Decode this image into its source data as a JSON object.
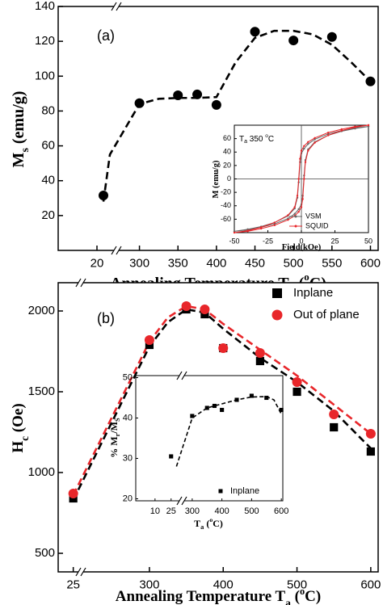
{
  "chart_data": [
    {
      "type": "scatter",
      "panel_label": "(a)",
      "xlabel": [
        {
          "text": "Annealing Temperature T"
        },
        {
          "text": "a",
          "sub": true
        },
        {
          "text": " ("
        },
        {
          "text": "o",
          "sup": true
        },
        {
          "text": "C)"
        }
      ],
      "ylabel": [
        {
          "text": "M"
        },
        {
          "text": "s",
          "sub": true
        },
        {
          "text": " (emu/g)"
        }
      ],
      "xlim": [
        [
          -10,
          35
        ],
        [
          270,
          610
        ]
      ],
      "xticks": [
        20,
        300,
        350,
        400,
        450,
        500,
        550,
        600
      ],
      "ylim": [
        0,
        140
      ],
      "yticks": [
        20,
        40,
        60,
        80,
        100,
        120,
        140
      ],
      "series": [
        {
          "color": "#000000",
          "line": "dashed",
          "marker": "none",
          "x": [
            25,
            30,
            300,
            325,
            350,
            375,
            400,
            425,
            450,
            475,
            500,
            525,
            550,
            575,
            600
          ],
          "values": [
            28,
            55,
            84,
            87,
            87.5,
            87.5,
            88,
            108,
            122,
            126,
            126,
            124,
            118,
            108,
            97
          ]
        },
        {
          "color": "#000000",
          "line": "none",
          "marker": "circle",
          "x": [
            25,
            300,
            350,
            375,
            400,
            450,
            500,
            550,
            600
          ],
          "values": [
            31.5,
            84.5,
            89,
            89.5,
            83.5,
            125.5,
            120.5,
            122.5,
            97
          ]
        }
      ]
    },
    {
      "type": "scatter",
      "inset": true,
      "annotation": [
        {
          "text": "T"
        },
        {
          "text": "a",
          "sub": true
        },
        {
          "text": " 350 "
        },
        {
          "text": "o",
          "sup": true
        },
        {
          "text": "C"
        }
      ],
      "xlabel": [
        {
          "text": "Field(kOe)"
        }
      ],
      "ylabel": [
        {
          "text": "M (emu/g)"
        }
      ],
      "xlim": [
        -50,
        50
      ],
      "xticks": [
        -50,
        -25,
        0,
        25,
        50
      ],
      "ylim": [
        -80,
        80
      ],
      "yticks": [
        -60,
        -40,
        -20,
        0,
        20,
        40,
        60
      ],
      "zero_lines": true,
      "legend": "lower right",
      "series": [
        {
          "name": "VSM",
          "color": "#666666",
          "line": "solid",
          "marker": "dot",
          "x": [
            50,
            40,
            30,
            20,
            10,
            5,
            2,
            0,
            -1,
            -2,
            -3,
            -5,
            -10,
            -20,
            -30,
            -40,
            -50,
            -40,
            -30,
            -20,
            -10,
            -5,
            -2,
            0,
            1,
            2,
            3,
            5,
            10,
            20,
            30,
            40,
            50
          ],
          "values": [
            78,
            76,
            72,
            67,
            59,
            52,
            45,
            38,
            25,
            -5,
            -28,
            -44,
            -55,
            -65,
            -71,
            -75,
            -78,
            -76,
            -72,
            -67,
            -59,
            -52,
            -45,
            -38,
            -25,
            5,
            28,
            44,
            55,
            65,
            71,
            75,
            78
          ]
        },
        {
          "name": "SQUID",
          "color": "#e8262a",
          "line": "solid",
          "marker": "dot",
          "x": [
            50,
            40,
            30,
            20,
            10,
            5,
            2,
            0,
            -1,
            -2,
            -3,
            -5,
            -10,
            -20,
            -30,
            -40,
            -50,
            -40,
            -30,
            -20,
            -10,
            -5,
            -2,
            0,
            1,
            2,
            3,
            5,
            10,
            20,
            30,
            40,
            50
          ],
          "values": [
            80,
            78,
            74,
            69,
            61,
            55,
            49,
            42,
            30,
            0,
            -25,
            -42,
            -54,
            -65,
            -72,
            -77,
            -80,
            -78,
            -74,
            -69,
            -61,
            -55,
            -49,
            -42,
            -30,
            0,
            25,
            42,
            54,
            65,
            72,
            77,
            80
          ]
        }
      ]
    },
    {
      "type": "scatter",
      "panel_label": "(b)",
      "xlabel": [
        {
          "text": "Annealing Temperature T"
        },
        {
          "text": "a",
          "sub": true
        },
        {
          "text": " ("
        },
        {
          "text": "o",
          "sup": true
        },
        {
          "text": "C)"
        }
      ],
      "ylabel": [
        {
          "text": "H"
        },
        {
          "text": "c",
          "sub": true
        },
        {
          "text": " (Oe)"
        }
      ],
      "xlim": [
        [
          15,
          30
        ],
        [
          207,
          610
        ]
      ],
      "xticks": [
        25,
        300,
        400,
        500,
        600
      ],
      "ylim": [
        385,
        2175
      ],
      "yticks": [
        500,
        1000,
        1500,
        2000
      ],
      "legend": "upper right",
      "series": [
        {
          "color": "#000000",
          "line": "dashed",
          "marker": "none",
          "x": [
            25,
            300,
            325,
            350,
            375,
            400,
            450,
            500,
            550,
            600
          ],
          "values": [
            830,
            1780,
            1930,
            2010,
            1990,
            1890,
            1710,
            1560,
            1380,
            1150
          ]
        },
        {
          "color": "#e8262a",
          "line": "dashed",
          "marker": "none",
          "x": [
            25,
            300,
            325,
            350,
            375,
            400,
            450,
            500,
            550,
            600
          ],
          "values": [
            860,
            1810,
            1960,
            2030,
            2010,
            1920,
            1760,
            1600,
            1420,
            1240
          ]
        },
        {
          "name": "Inplane",
          "color": "#000000",
          "line": "none",
          "marker": "square",
          "x": [
            25,
            300,
            350,
            375,
            400,
            450,
            500,
            550,
            600
          ],
          "values": [
            840,
            1790,
            2010,
            1980,
            1770,
            1690,
            1500,
            1280,
            1130
          ]
        },
        {
          "name": "Out of plane",
          "color": "#e8262a",
          "line": "none",
          "marker": "circle",
          "x": [
            25,
            300,
            350,
            375,
            400,
            450,
            500,
            550,
            600
          ],
          "values": [
            870,
            1820,
            2030,
            2010,
            1770,
            1740,
            1560,
            1360,
            1240
          ]
        }
      ]
    },
    {
      "type": "scatter",
      "inset": true,
      "xlabel": [
        {
          "text": "T"
        },
        {
          "text": "a",
          "sub": true
        },
        {
          "text": " ("
        },
        {
          "text": "o",
          "sup": true
        },
        {
          "text": "C)"
        }
      ],
      "ylabel": [
        {
          "text": "% M"
        },
        {
          "text": "r",
          "sub": true
        },
        {
          "text": "/M"
        },
        {
          "text": "S",
          "sub": true
        }
      ],
      "xlim": [
        [
          -8,
          35
        ],
        [
          265,
          605
        ]
      ],
      "xticks": [
        10,
        25,
        300,
        400,
        500,
        600
      ],
      "ylim": [
        19.5,
        50.5
      ],
      "yticks": [
        20,
        30,
        40,
        50
      ],
      "legend": "lower right",
      "series": [
        {
          "color": "#000000",
          "line": "dashed",
          "marker": "none",
          "x": [
            30,
            300,
            350,
            400,
            450,
            500,
            550,
            575,
            600
          ],
          "values": [
            28,
            40,
            42.5,
            43.5,
            44.5,
            45.2,
            45.3,
            44.5,
            41
          ]
        },
        {
          "name": "Inplane",
          "color": "#000000",
          "line": "none",
          "marker": "square",
          "x": [
            25,
            300,
            350,
            375,
            400,
            450,
            500,
            550,
            600
          ],
          "values": [
            30.5,
            40.5,
            42.5,
            43,
            42,
            44.5,
            45.5,
            45,
            42
          ]
        }
      ]
    }
  ]
}
